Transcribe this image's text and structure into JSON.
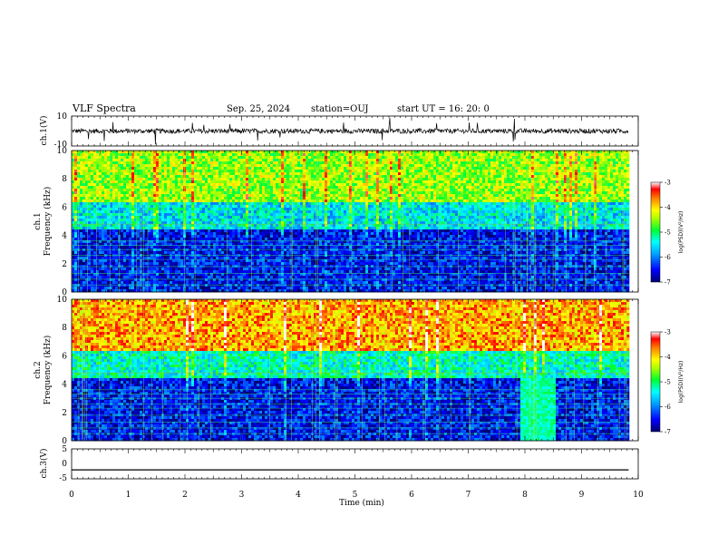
{
  "header": {
    "title": "VLF Spectra",
    "date": "Sep. 25, 2024",
    "station": "station=OUJ",
    "start": "start  UT  =   16: 20: 0"
  },
  "colors": {
    "spec_low": "#00008f",
    "spec_mid_blue": "#0050ff",
    "spec_cyan": "#00e0ff",
    "spec_green": "#30ff30",
    "spec_yellow": "#f0ff00",
    "spec_orange": "#ff8000",
    "spec_red": "#e00000",
    "waveform": "#000000"
  },
  "chart_data": [
    {
      "type": "line",
      "name": "ch1-waveform",
      "ylabel": "ch.1(V)",
      "ylim": [
        -10,
        10
      ],
      "yticks": [
        "10",
        "-10"
      ],
      "xlim": [
        0,
        10
      ],
      "description_values": {
        "baseline": 0,
        "typical_range": [
          -2,
          2
        ],
        "spikes": [
          -8,
          7
        ]
      }
    },
    {
      "type": "heatmap",
      "name": "ch1-spectrogram",
      "ylabel": "ch.1\nFrequency  (kHz)",
      "ylim": [
        0,
        10
      ],
      "yticks": [
        "0",
        "2",
        "4",
        "6",
        "8",
        "10"
      ],
      "xlim": [
        0,
        9.83
      ],
      "colorbar": {
        "label": "log(PSD)(V²/Hz)",
        "range": [
          -7,
          -3
        ],
        "ticks": [
          "-3",
          "-4",
          "-5",
          "-6",
          "-7"
        ]
      },
      "levels": [
        {
          "band_khz": [
            0,
            4.5
          ],
          "log_psd": -6.5
        },
        {
          "band_khz": [
            4.5,
            6.5
          ],
          "log_psd": -5.5
        },
        {
          "band_khz": [
            6.5,
            10
          ],
          "log_psd": -4.5
        }
      ]
    },
    {
      "type": "heatmap",
      "name": "ch2-spectrogram",
      "ylabel": "ch.2\nFrequency  (kHz)",
      "ylim": [
        0,
        10
      ],
      "yticks": [
        "0",
        "2",
        "4",
        "6",
        "8",
        "10"
      ],
      "xlim": [
        0,
        9.83
      ],
      "colorbar": {
        "label": "log(PSD)(V²/Hz)",
        "range": [
          -7,
          -3
        ],
        "ticks": [
          "-3",
          "-4",
          "-5",
          "-6",
          "-7"
        ]
      },
      "levels": [
        {
          "band_khz": [
            0,
            4.5
          ],
          "log_psd": -6.5
        },
        {
          "band_khz": [
            4.5,
            6.5
          ],
          "log_psd": -5.3
        },
        {
          "band_khz": [
            6.5,
            10
          ],
          "log_psd": -3.8
        }
      ]
    },
    {
      "type": "line",
      "name": "ch3-trace",
      "ylabel": "ch.3(V)",
      "ylim": [
        -5,
        5
      ],
      "yticks": [
        "5",
        "0",
        "-5"
      ],
      "xlim": [
        0,
        9.83
      ],
      "y": -2
    }
  ],
  "xaxis": {
    "label": "Time  (min)",
    "ticks": [
      "0",
      "1",
      "2",
      "3",
      "4",
      "5",
      "6",
      "7",
      "8",
      "9",
      "10"
    ]
  }
}
